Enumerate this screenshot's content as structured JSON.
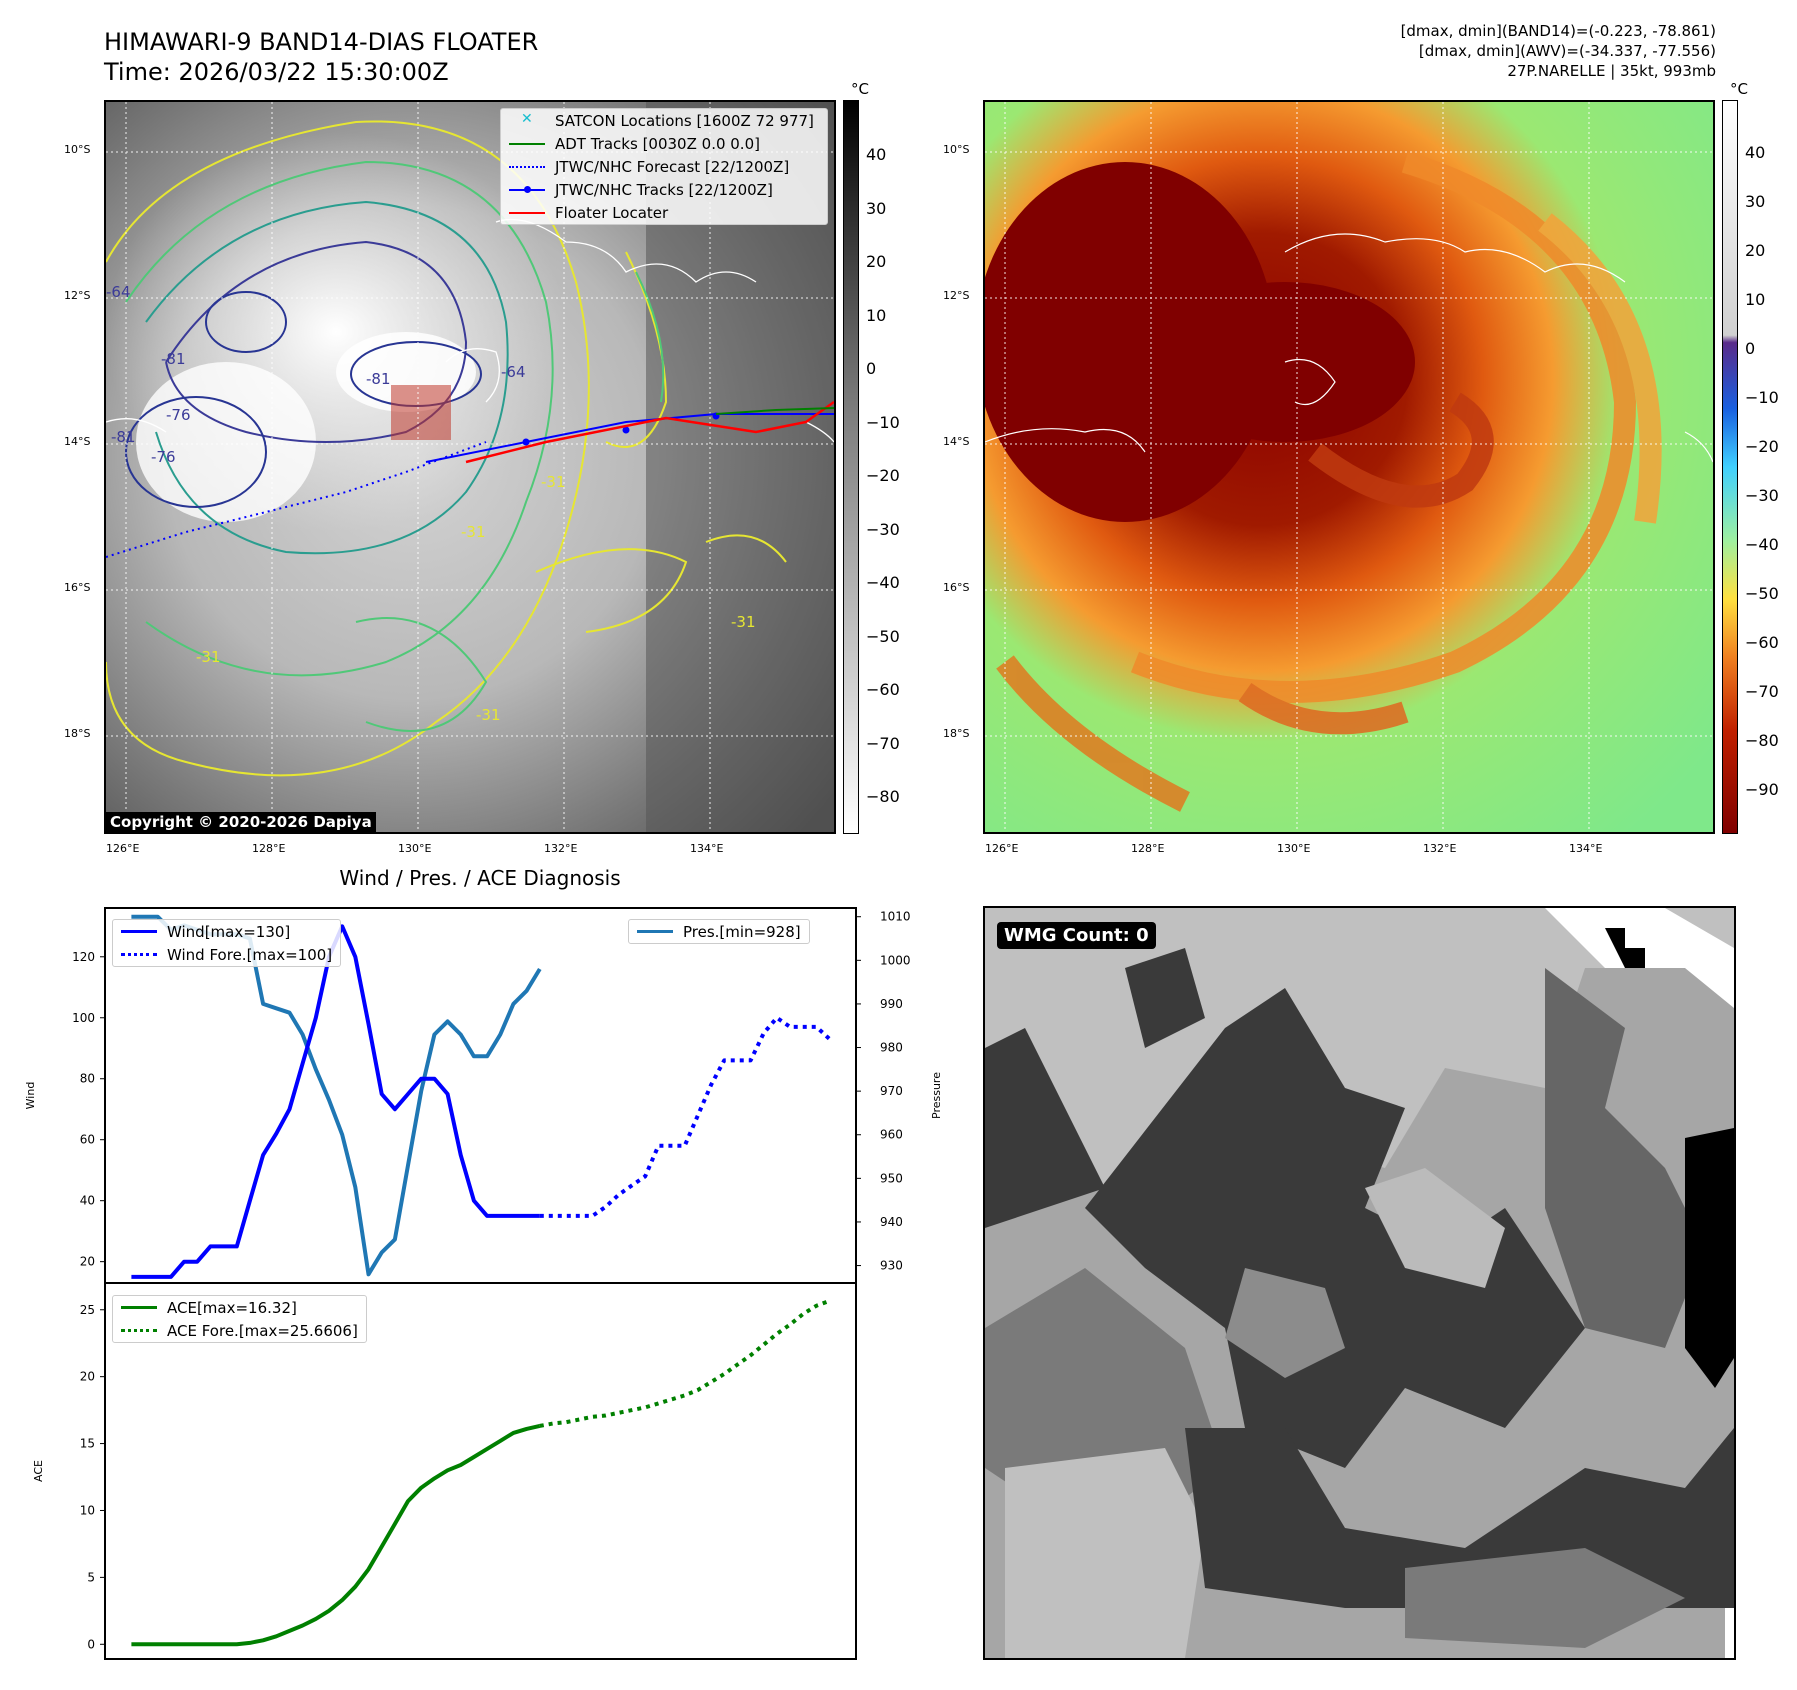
{
  "header": {
    "title_line1": "HIMAWARI-9 BAND14-DIAS FLOATER",
    "title_line2": "Time: 2026/03/22 15:30:00Z",
    "info_line1": "[dmax, dmin](BAND14)=(-0.223, -78.861)",
    "info_line2": "[dmax, dmin](AWV)=(-34.337, -77.556)",
    "info_line3": "27P.NARELLE | 35kt, 993mb"
  },
  "map_axes": {
    "lat_labels": [
      "10°S",
      "12°S",
      "14°S",
      "16°S",
      "18°S"
    ],
    "lon_labels": [
      "126°E",
      "128°E",
      "130°E",
      "132°E",
      "134°E"
    ]
  },
  "ir_panel": {
    "legend": [
      {
        "label": "SATCON Locations [1600Z 72 977]",
        "color": "#17becf",
        "symbol": "x"
      },
      {
        "label": "ADT Tracks [0030Z 0.0 0.0]",
        "color": "#008000",
        "symbol": "line"
      },
      {
        "label": "JTWC/NHC Forecast [22/1200Z]",
        "color": "#0000ff",
        "symbol": "dotted"
      },
      {
        "label": "JTWC/NHC Tracks [22/1200Z]",
        "color": "#0000ff",
        "symbol": "line-dot"
      },
      {
        "label": "Floater Locater",
        "color": "#ff0000",
        "symbol": "line"
      }
    ],
    "contour_labels": [
      "-64",
      "-81",
      "-76",
      "-81",
      "-81",
      "-76",
      "-64",
      "-31",
      "-31",
      "-31",
      "-31",
      "-31"
    ],
    "copyright": "Copyright © 2020-2026 Dapiya",
    "colorbar_unit": "°C",
    "colorbar_ticks": [
      "40",
      "30",
      "20",
      "10",
      "0",
      "−10",
      "−20",
      "−30",
      "−40",
      "−50",
      "−60",
      "−70",
      "−80"
    ]
  },
  "color_panel": {
    "colorbar_unit": "°C",
    "colorbar_ticks": [
      "40",
      "30",
      "20",
      "10",
      "0",
      "−10",
      "−20",
      "−30",
      "−40",
      "−50",
      "−60",
      "−70",
      "−80",
      "−90"
    ]
  },
  "wmg_panel": {
    "label": "WMG Count: 0"
  },
  "chart_data": [
    {
      "type": "line",
      "title": "Wind / Pres. / ACE Diagnosis",
      "ylabel": "Wind",
      "ylabel_right": "Pressure",
      "ylim": [
        13,
        136
      ],
      "ylim_right": [
        926,
        1012
      ],
      "yticks": [
        20,
        40,
        60,
        80,
        100,
        120
      ],
      "yticks_right": [
        930,
        940,
        950,
        960,
        970,
        980,
        990,
        1000,
        1010
      ],
      "series": [
        {
          "name": "Wind[max=130]",
          "axis": "left",
          "color": "#0000ff",
          "style": "solid",
          "x": [
            0,
            1,
            2,
            3,
            4,
            5,
            6,
            7,
            8,
            9,
            10,
            11,
            12,
            13,
            14,
            15,
            16,
            17,
            18,
            19,
            20,
            21,
            22,
            23,
            24,
            25,
            26,
            27,
            28,
            29,
            30,
            31
          ],
          "values": [
            15,
            15,
            15,
            15,
            20,
            20,
            25,
            25,
            25,
            40,
            55,
            62,
            70,
            85,
            100,
            120,
            130,
            120,
            98,
            75,
            70,
            75,
            80,
            80,
            75,
            55,
            40,
            35,
            35,
            35,
            35,
            35
          ]
        },
        {
          "name": "Wind Fore.[max=100]",
          "axis": "left",
          "color": "#0000ff",
          "style": "dotted",
          "x": [
            31,
            32,
            33,
            34,
            35,
            36,
            37,
            38,
            39,
            40,
            41,
            42,
            43,
            44,
            45,
            46,
            47,
            48,
            49,
            50,
            51,
            52,
            53
          ],
          "values": [
            35,
            35,
            35,
            35,
            35,
            38,
            42,
            45,
            48,
            58,
            58,
            58,
            68,
            78,
            86,
            86,
            86,
            95,
            100,
            97,
            97,
            97,
            93
          ]
        },
        {
          "name": "Pres.[min=928]",
          "axis": "right",
          "color": "#1f77b4",
          "style": "solid",
          "x": [
            0,
            1,
            2,
            3,
            4,
            5,
            6,
            7,
            8,
            9,
            10,
            11,
            12,
            13,
            14,
            15,
            16,
            17,
            18,
            19,
            20,
            21,
            22,
            23,
            24,
            25,
            26,
            27,
            28,
            29,
            30,
            31
          ],
          "values": [
            1010,
            1010,
            1010,
            1007,
            1008,
            1007,
            1006,
            1006,
            1006,
            1005,
            990,
            989,
            988,
            983,
            975,
            968,
            960,
            948,
            928,
            933,
            936,
            953,
            970,
            983,
            986,
            983,
            978,
            978,
            983,
            990,
            993,
            998
          ]
        }
      ]
    },
    {
      "type": "line",
      "ylabel": "ACE",
      "ylim": [
        -1.1,
        27
      ],
      "yticks": [
        0,
        5,
        10,
        15,
        20,
        25
      ],
      "series": [
        {
          "name": "ACE[max=16.32]",
          "color": "#008000",
          "style": "solid",
          "x": [
            0,
            1,
            2,
            3,
            4,
            5,
            6,
            7,
            8,
            9,
            10,
            11,
            12,
            13,
            14,
            15,
            16,
            17,
            18,
            19,
            20,
            21,
            22,
            23,
            24,
            25,
            26,
            27,
            28,
            29,
            30,
            31
          ],
          "values": [
            0,
            0,
            0,
            0,
            0,
            0,
            0,
            0,
            0,
            0.1,
            0.3,
            0.6,
            1.0,
            1.4,
            1.9,
            2.5,
            3.3,
            4.3,
            5.6,
            7.3,
            9.0,
            10.7,
            11.7,
            12.4,
            13.0,
            13.4,
            14.0,
            14.6,
            15.2,
            15.8,
            16.1,
            16.32
          ]
        },
        {
          "name": "ACE Fore.[max=25.6606]",
          "color": "#008000",
          "style": "dotted",
          "x": [
            31,
            32,
            33,
            34,
            35,
            36,
            37,
            38,
            39,
            40,
            41,
            42,
            43,
            44,
            45,
            46,
            47,
            48,
            49,
            50,
            51,
            52,
            53
          ],
          "values": [
            16.32,
            16.5,
            16.6,
            16.8,
            17.0,
            17.1,
            17.3,
            17.5,
            17.7,
            18.0,
            18.3,
            18.6,
            19.0,
            19.6,
            20.2,
            20.9,
            21.6,
            22.4,
            23.2,
            23.9,
            24.7,
            25.3,
            25.66
          ]
        }
      ]
    }
  ]
}
